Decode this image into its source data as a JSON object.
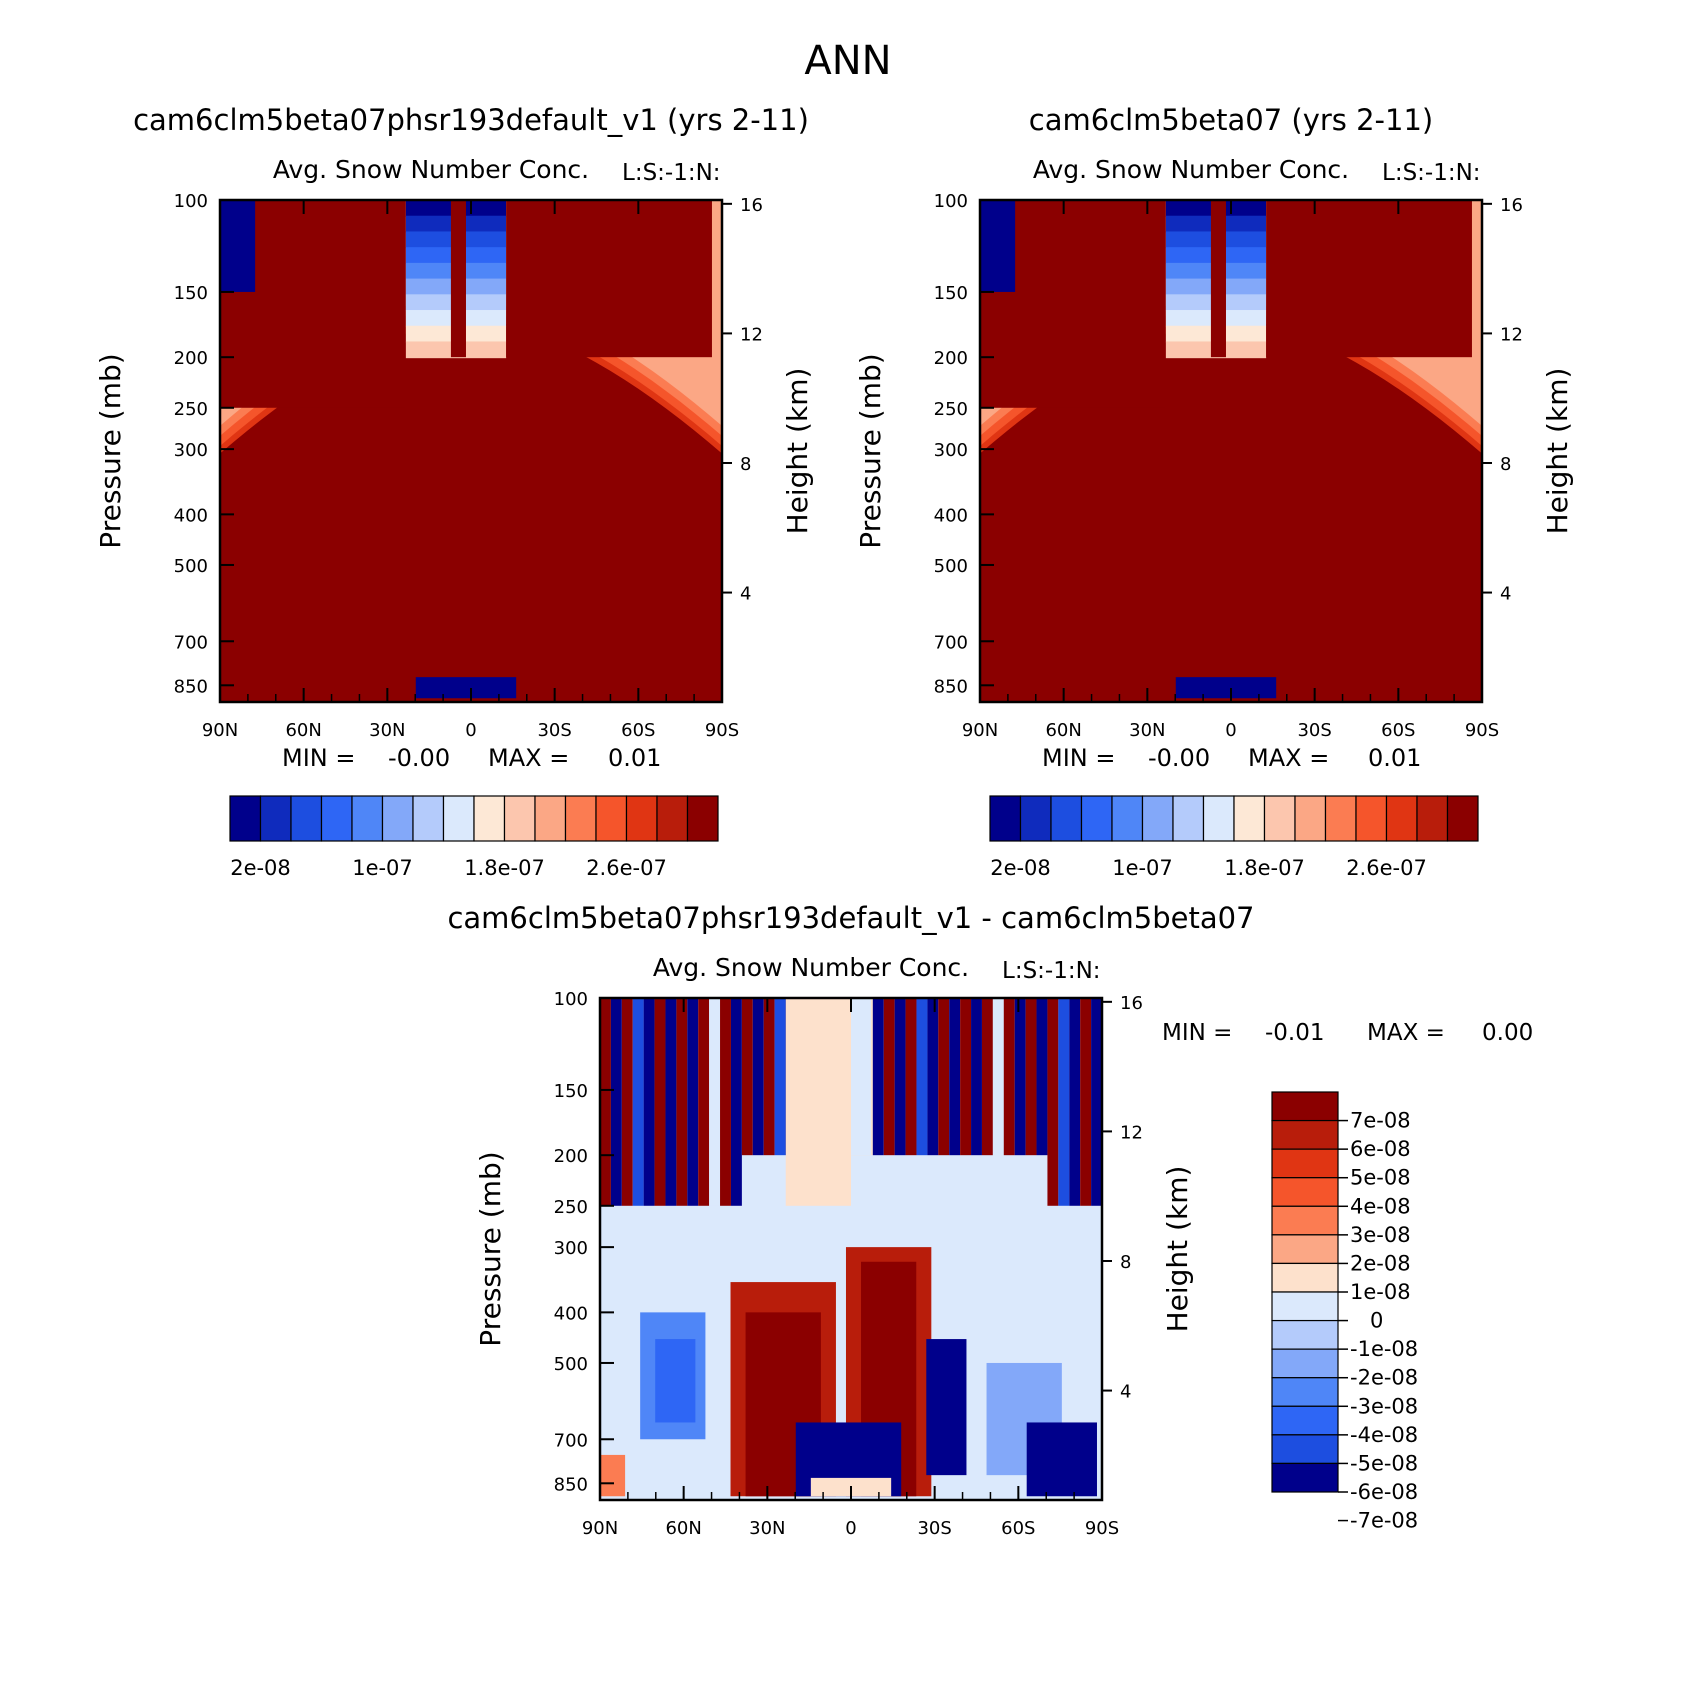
{
  "figure": {
    "title": "ANN"
  },
  "chart_data": [
    {
      "type": "heatmap",
      "id": "panel-test",
      "title": "cam6clm5beta07phsr193default_v1 (yrs 2-11)",
      "subtitle": "Avg. Snow Number Conc.",
      "corner_label": "L:S:-1:N:",
      "xlabel": "",
      "ylabel": "Pressure (mb)",
      "ylabel_right": "Height (km)",
      "x_ticks": [
        "90N",
        "60N",
        "30N",
        "0",
        "30S",
        "60S",
        "90S"
      ],
      "y_ticks": [
        "100",
        "150",
        "200",
        "250",
        "300",
        "400",
        "500",
        "700",
        "850"
      ],
      "y2_ticks": [
        "16",
        "12",
        "8",
        "4"
      ],
      "stats": {
        "min_label": "MIN =",
        "min": "-0.00",
        "max_label": "MAX =",
        "max": "0.01"
      },
      "colorbar": {
        "colors": [
          "#00008b",
          "#0f2bbd",
          "#1d4ee0",
          "#2e66f5",
          "#4f86f7",
          "#83a8f9",
          "#b4cbfb",
          "#dbe9fc",
          "#fde8d6",
          "#fcc6ae",
          "#fba785",
          "#fb7c52",
          "#f5552b",
          "#e03513",
          "#b81d0b",
          "#8b0000"
        ],
        "labels": [
          "2e-08",
          "1e-07",
          "1.8e-07",
          "2.6e-07"
        ]
      }
    },
    {
      "type": "heatmap",
      "id": "panel-control",
      "title": "cam6clm5beta07 (yrs 2-11)",
      "subtitle": "Avg. Snow Number Conc.",
      "corner_label": "L:S:-1:N:",
      "xlabel": "",
      "ylabel": "Pressure (mb)",
      "ylabel_right": "Height (km)",
      "x_ticks": [
        "90N",
        "60N",
        "30N",
        "0",
        "30S",
        "60S",
        "90S"
      ],
      "y_ticks": [
        "100",
        "150",
        "200",
        "250",
        "300",
        "400",
        "500",
        "700",
        "850"
      ],
      "y2_ticks": [
        "16",
        "12",
        "8",
        "4"
      ],
      "stats": {
        "min_label": "MIN =",
        "min": "-0.00",
        "max_label": "MAX =",
        "max": "0.01"
      },
      "colorbar": {
        "colors": [
          "#00008b",
          "#0f2bbd",
          "#1d4ee0",
          "#2e66f5",
          "#4f86f7",
          "#83a8f9",
          "#b4cbfb",
          "#dbe9fc",
          "#fde8d6",
          "#fcc6ae",
          "#fba785",
          "#fb7c52",
          "#f5552b",
          "#e03513",
          "#b81d0b",
          "#8b0000"
        ],
        "labels": [
          "2e-08",
          "1e-07",
          "1.8e-07",
          "2.6e-07"
        ]
      }
    },
    {
      "type": "heatmap",
      "id": "panel-diff",
      "title": "cam6clm5beta07phsr193default_v1 - cam6clm5beta07",
      "subtitle": "Avg. Snow Number Conc.",
      "corner_label": "L:S:-1:N:",
      "xlabel": "",
      "ylabel": "Pressure (mb)",
      "ylabel_right": "Height (km)",
      "x_ticks": [
        "90N",
        "60N",
        "30N",
        "0",
        "30S",
        "60S",
        "90S"
      ],
      "y_ticks": [
        "100",
        "150",
        "200",
        "250",
        "300",
        "400",
        "500",
        "700",
        "850"
      ],
      "y2_ticks": [
        "16",
        "12",
        "8",
        "4"
      ],
      "stats": {
        "min_label": "MIN =",
        "min": "-0.01",
        "max_label": "MAX =",
        "max": "0.00"
      },
      "colorbar": {
        "colors": [
          "#8b0000",
          "#b81d0b",
          "#e03513",
          "#f5552b",
          "#fb7c52",
          "#fba785",
          "#fde1cc",
          "#dbe9fc",
          "#b4cbfb",
          "#83a8f9",
          "#4f86f7",
          "#2e66f5",
          "#1d4ee0",
          "#00008b"
        ],
        "labels": [
          "7e-08",
          "6e-08",
          "5e-08",
          "4e-08",
          "3e-08",
          "2e-08",
          "1e-08",
          "0",
          "-1e-08",
          "-2e-08",
          "-3e-08",
          "-4e-08",
          "-5e-08",
          "-6e-08",
          "-7e-08"
        ]
      }
    }
  ]
}
